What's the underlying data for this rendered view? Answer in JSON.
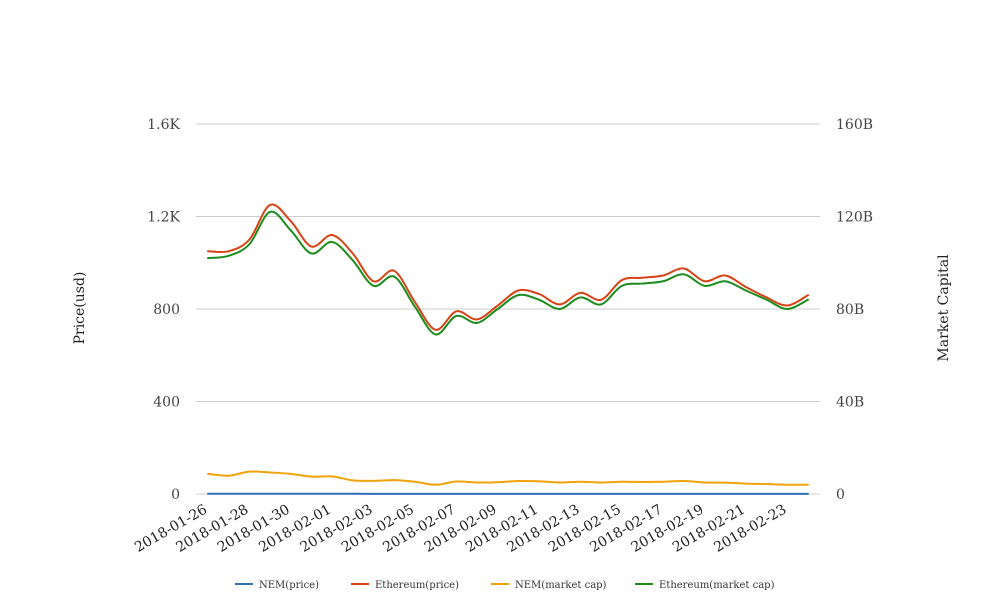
{
  "chart_data": {
    "type": "line",
    "x": [
      "2018-01-26",
      "2018-01-27",
      "2018-01-28",
      "2018-01-29",
      "2018-01-30",
      "2018-01-31",
      "2018-02-01",
      "2018-02-02",
      "2018-02-03",
      "2018-02-04",
      "2018-02-05",
      "2018-02-06",
      "2018-02-07",
      "2018-02-08",
      "2018-02-09",
      "2018-02-10",
      "2018-02-11",
      "2018-02-12",
      "2018-02-13",
      "2018-02-14",
      "2018-02-15",
      "2018-02-16",
      "2018-02-17",
      "2018-02-18",
      "2018-02-19",
      "2018-02-20",
      "2018-02-21",
      "2018-02-22",
      "2018-02-23",
      "2018-02-24"
    ],
    "x_tick_labels": [
      "2018-01-26",
      "2018-01-28",
      "2018-01-30",
      "2018-02-01",
      "2018-02-03",
      "2018-02-05",
      "2018-02-07",
      "2018-02-09",
      "2018-02-11",
      "2018-02-13",
      "2018-02-15",
      "2018-02-17",
      "2018-02-19",
      "2018-02-21",
      "2018-02-23"
    ],
    "y_left": {
      "label": "Price(usd)",
      "range": [
        0,
        1600
      ],
      "ticks": [
        0,
        400,
        800,
        1200,
        1600
      ],
      "tick_labels": [
        "0",
        "400",
        "800",
        "1.2K",
        "1.6K"
      ]
    },
    "y_right": {
      "label": "Market Capital",
      "range": [
        0,
        160000000000
      ],
      "ticks": [
        0,
        40000000000,
        80000000000,
        120000000000,
        160000000000
      ],
      "tick_labels": [
        "0",
        "40B",
        "80B",
        "120B",
        "160B"
      ]
    },
    "grid": true,
    "legend_position": "bottom",
    "series": [
      {
        "name": "NEM(price)",
        "axis": "left",
        "color": "#2f6db5",
        "values": [
          1.1,
          1.05,
          1.15,
          1.1,
          1.0,
          0.95,
          0.9,
          0.8,
          0.7,
          0.65,
          0.5,
          0.55,
          0.55,
          0.52,
          0.55,
          0.58,
          0.55,
          0.52,
          0.55,
          0.53,
          0.55,
          0.55,
          0.55,
          0.58,
          0.53,
          0.5,
          0.48,
          0.45,
          0.43,
          0.42
        ]
      },
      {
        "name": "Ethereum(price)",
        "axis": "left",
        "color": "#d84315",
        "values": [
          1050,
          1050,
          1100,
          1250,
          1180,
          1070,
          1120,
          1040,
          920,
          965,
          830,
          710,
          790,
          755,
          815,
          880,
          865,
          820,
          870,
          840,
          925,
          935,
          945,
          975,
          920,
          945,
          895,
          850,
          815,
          860
        ]
      },
      {
        "name": "NEM(market cap)",
        "axis": "right",
        "color": "#f0a30a",
        "values": [
          8700000000,
          7900000000,
          9700000000,
          9300000000,
          8700000000,
          7500000000,
          7600000000,
          5900000000,
          5700000000,
          6000000000,
          5300000000,
          4000000000,
          5400000000,
          5000000000,
          5100000000,
          5600000000,
          5500000000,
          5000000000,
          5300000000,
          5000000000,
          5300000000,
          5200000000,
          5300000000,
          5600000000,
          5000000000,
          4900000000,
          4500000000,
          4300000000,
          4000000000,
          4000000000
        ]
      },
      {
        "name": "Ethereum(market cap)",
        "axis": "right",
        "color": "#1c8c1c",
        "values": [
          102000000000,
          103000000000,
          108000000000,
          122000000000,
          114000000000,
          104000000000,
          109000000000,
          101000000000,
          90000000000,
          94000000000,
          81000000000,
          69000000000,
          77000000000,
          74000000000,
          80000000000,
          86000000000,
          84000000000,
          80000000000,
          85000000000,
          82000000000,
          90000000000,
          91000000000,
          92000000000,
          95000000000,
          90000000000,
          92000000000,
          88000000000,
          84000000000,
          80000000000,
          84000000000
        ]
      }
    ]
  }
}
